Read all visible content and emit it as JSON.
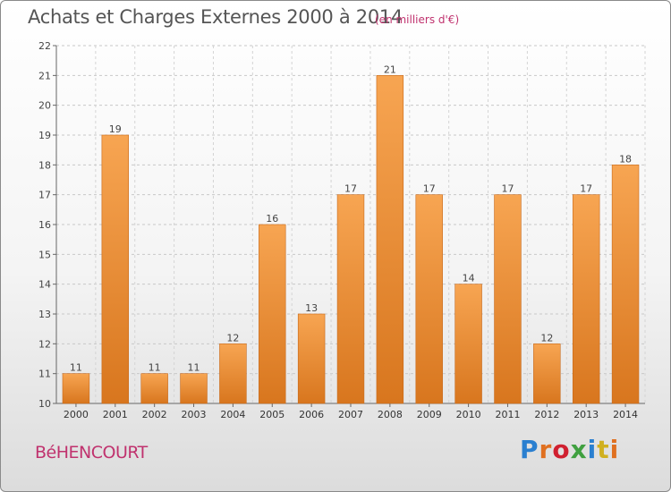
{
  "header": {
    "title": "Achats et Charges Externes 2000 à 2014",
    "subtitle": "(en milliers d'€)"
  },
  "footer": {
    "town": "BéHENCOURT",
    "logo_text": "Proxiti",
    "logo_colors": [
      "#2a7fd0",
      "#e07020",
      "#d02030",
      "#40a040",
      "#2a7fd0",
      "#d0b020",
      "#e07020"
    ]
  },
  "chart_data": {
    "type": "bar",
    "title": "Achats et Charges Externes 2000 à 2014",
    "xlabel": "",
    "ylabel": "",
    "categories": [
      "2000",
      "2001",
      "2002",
      "2003",
      "2004",
      "2005",
      "2006",
      "2007",
      "2008",
      "2009",
      "2010",
      "2011",
      "2012",
      "2013",
      "2014"
    ],
    "values": [
      11,
      19,
      11,
      11,
      12,
      16,
      13,
      17,
      21,
      17,
      14,
      17,
      12,
      17,
      18
    ],
    "ylim": [
      10,
      22
    ],
    "yticks": [
      10,
      11,
      12,
      13,
      14,
      15,
      16,
      17,
      18,
      19,
      20,
      21,
      22
    ],
    "grid": true,
    "legend": "none",
    "bar_color_top": "#f7a552",
    "bar_color_bottom": "#d8761e"
  }
}
